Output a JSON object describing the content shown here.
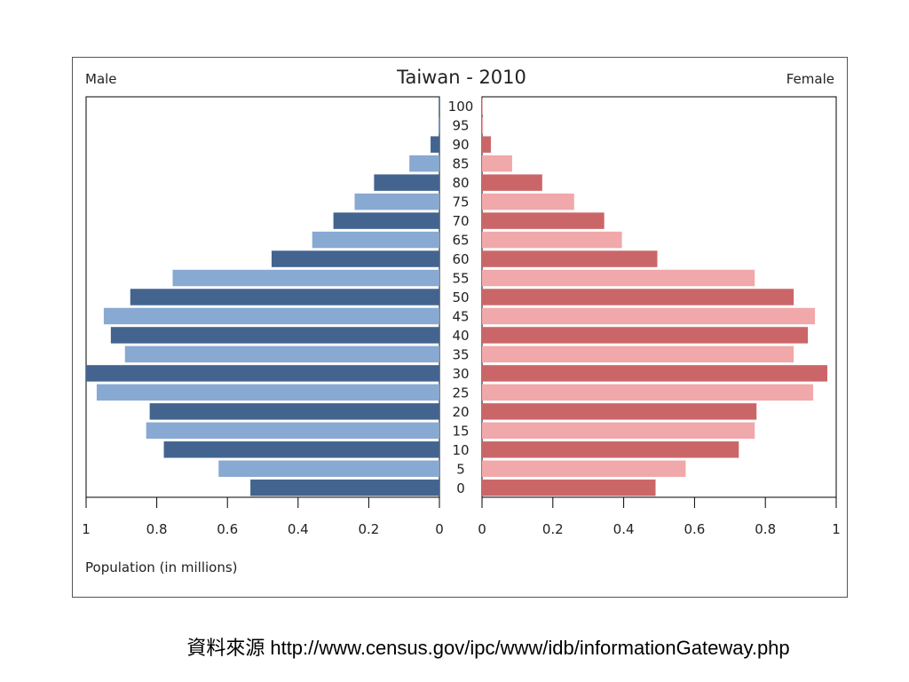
{
  "chart_data": {
    "type": "bar",
    "orientation": "horizontal-pyramid",
    "title": "Taiwan - 2010",
    "left_label": "Male",
    "right_label": "Female",
    "xlabel": "Population (in millions)",
    "xlim": [
      0,
      1
    ],
    "x_ticks": [
      "1",
      "0.8",
      "0.6",
      "0.4",
      "0.2",
      "0"
    ],
    "x_ticks_right": [
      "0",
      "0.2",
      "0.4",
      "0.6",
      "0.8",
      "1"
    ],
    "categories": [
      "0",
      "5",
      "10",
      "15",
      "20",
      "25",
      "30",
      "35",
      "40",
      "45",
      "50",
      "55",
      "60",
      "65",
      "70",
      "75",
      "80",
      "85",
      "90",
      "95",
      "100"
    ],
    "series": [
      {
        "name": "Male",
        "colors": [
          "#43648f",
          "#88a9d1"
        ],
        "values": [
          0.535,
          0.625,
          0.78,
          0.83,
          0.82,
          0.97,
          1.0,
          0.89,
          0.93,
          0.95,
          0.875,
          0.755,
          0.475,
          0.36,
          0.3,
          0.24,
          0.185,
          0.085,
          0.025,
          0.003,
          0.002
        ]
      },
      {
        "name": "Female",
        "colors": [
          "#cb6668",
          "#f0a8aa"
        ],
        "values": [
          0.49,
          0.575,
          0.725,
          0.77,
          0.775,
          0.935,
          0.975,
          0.88,
          0.92,
          0.94,
          0.88,
          0.77,
          0.495,
          0.395,
          0.345,
          0.26,
          0.17,
          0.085,
          0.025,
          0.003,
          0.001
        ]
      }
    ],
    "grid": false,
    "legend": "none"
  },
  "caption": {
    "label": "資料來源",
    "url": "http://www.census.gov/ipc/www/idb/informationGateway.php"
  }
}
